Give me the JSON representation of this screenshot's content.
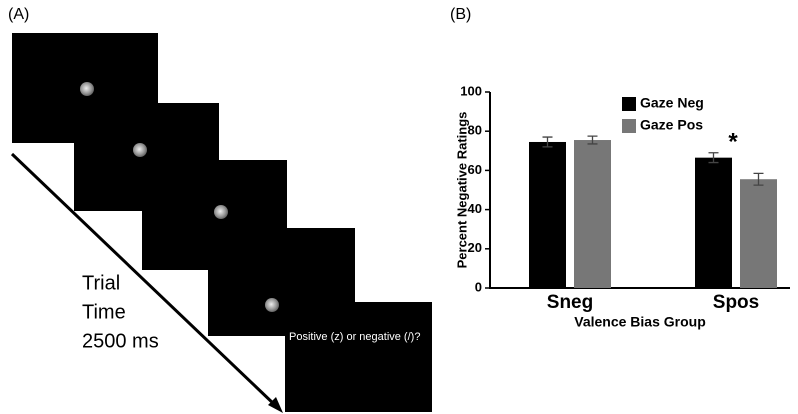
{
  "panel_a": {
    "label": "(A)",
    "time_text": [
      "Trial",
      "Time",
      "2500 ms"
    ],
    "prompt": "Positive (z) or negative (/)?"
  },
  "chart_data": {
    "type": "bar",
    "panel_label": "(B)",
    "x_label": "Valence Bias Group",
    "y_label": "Percent Negative Ratings",
    "categories": [
      "Sneg",
      "Spos"
    ],
    "series": [
      {
        "name": "Gaze Neg",
        "color": "#000000",
        "values": [
          74.5,
          66.5
        ],
        "errors": [
          2.5,
          2.5
        ]
      },
      {
        "name": "Gaze Pos",
        "color": "#777777",
        "values": [
          75.5,
          55.5
        ],
        "errors": [
          2,
          3
        ]
      }
    ],
    "ylim": [
      0,
      100
    ],
    "yticks": [
      0,
      20,
      40,
      60,
      80,
      100
    ],
    "annotation": "*"
  }
}
